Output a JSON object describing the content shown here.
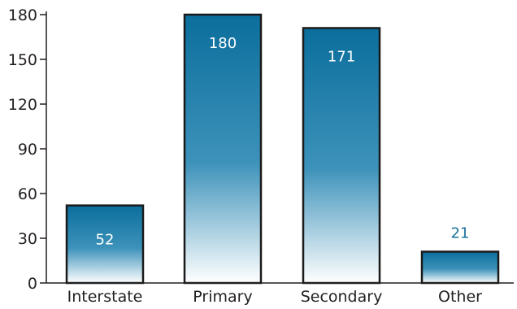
{
  "chart_data": {
    "type": "bar",
    "categories": [
      "Interstate",
      "Primary",
      "Secondary",
      "Other"
    ],
    "values": [
      52,
      180,
      171,
      21
    ],
    "data_labels": [
      "52",
      "180",
      "171",
      "21"
    ],
    "title": "",
    "xlabel": "",
    "ylabel": "",
    "ylim": [
      0,
      180
    ],
    "yticks": [
      0,
      30,
      60,
      90,
      120,
      150,
      180
    ],
    "ytick_labels": [
      "0",
      "30",
      "60",
      "90",
      "120",
      "150",
      "180"
    ],
    "grid": false,
    "legend": "none"
  },
  "colors": {
    "bar_top": "#0b6e9c",
    "bar_bottom": "#ffffff",
    "bar_outline": "#1a1a1a",
    "label_inside": "#ffffff",
    "label_outside": "#1a6f9a",
    "axis": "#231f20"
  }
}
